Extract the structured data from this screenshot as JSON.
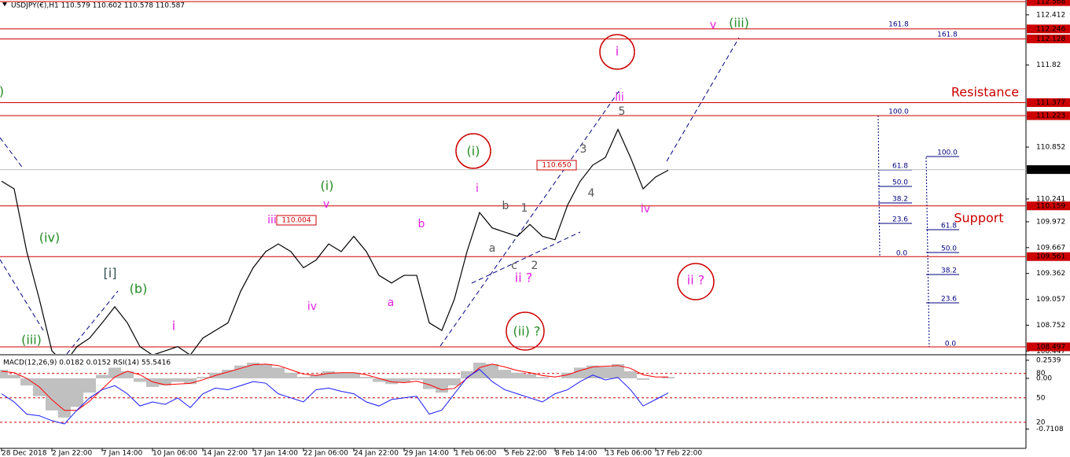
{
  "chart_data": [
    {
      "type": "line",
      "title": "USDJPY(€),H1  110.579 110.602 110.578 110.587",
      "categories": [
        "28 Dec 2018",
        null,
        null,
        null,
        "2 Jan 22:00",
        null,
        null,
        null,
        "7 Jan 14:00",
        null,
        null,
        null,
        "10 Jan 06:00",
        null,
        null,
        null,
        "14 Jan 22:00",
        null,
        null,
        null,
        "17 Jan 14:00",
        null,
        null,
        null,
        "22 Jan 06:00",
        null,
        null,
        null,
        "24 Jan 22:00",
        null,
        null,
        null,
        "29 Jan 14:00",
        null,
        null,
        null,
        "1 Feb 06:00",
        null,
        null,
        null,
        "5 Feb 22:00",
        null,
        null,
        null,
        "8 Feb 14:00",
        null,
        null,
        null,
        "13 Feb 06:00",
        null,
        null,
        null,
        "17 Feb 22:00",
        null
      ],
      "series": [
        {
          "color": "#000000",
          "values": [
            110.45,
            110.36,
            109.62,
            109.06,
            108.45,
            108.3,
            108.5,
            108.6,
            108.78,
            108.97,
            108.78,
            108.5,
            108.4,
            108.45,
            108.5,
            108.4,
            108.6,
            108.69,
            108.78,
            109.15,
            109.43,
            109.62,
            109.71,
            109.62,
            109.43,
            109.52,
            109.71,
            109.62,
            109.8,
            109.62,
            109.34,
            109.25,
            109.34,
            109.34,
            108.78,
            108.69,
            109.06,
            109.62,
            110.08,
            109.9,
            109.85,
            109.8,
            109.94,
            109.8,
            109.76,
            110.17,
            110.45,
            110.64,
            110.73,
            111.06,
            110.73,
            110.36,
            110.5,
            110.58
          ]
        }
      ],
      "ylim": [
        108.413,
        112.587
      ],
      "yticks": [
        112.412,
        111.82,
        110.852,
        110.241,
        109.972,
        109.667,
        109.362,
        109.057,
        108.752,
        108.447
      ],
      "levels": [
        112.568,
        112.246,
        112.128,
        111.377,
        111.223,
        110.159,
        109.561,
        108.497
      ],
      "levels_color": "#cc0000",
      "last": 110.587,
      "annotations": [
        {
          "text": ")",
          "color": "#228b22"
        },
        {
          "text": "(iv)",
          "color": "#228b22"
        },
        {
          "text": "(iii)",
          "color": "#228b22"
        },
        {
          "text": "[i]",
          "color": "#2f4f4f"
        },
        {
          "text": "(b)",
          "color": "#228b22"
        },
        {
          "text": "i",
          "color": "#e020e0"
        },
        {
          "text": "iii",
          "color": "#e020e0"
        },
        {
          "text": "v",
          "color": "#e020e0"
        },
        {
          "text": "(i)",
          "color": "#228b22"
        },
        {
          "text": "iv",
          "color": "#e020e0"
        },
        {
          "text": "b",
          "color": "#e020e0"
        },
        {
          "text": "a",
          "color": "#e020e0"
        },
        {
          "text": "i",
          "color": "#e020e0"
        },
        {
          "text": "b",
          "color": "#555555"
        },
        {
          "text": "1",
          "color": "#555555"
        },
        {
          "text": "a",
          "color": "#555555"
        },
        {
          "text": "c",
          "color": "#555555"
        },
        {
          "text": "2",
          "color": "#555555"
        },
        {
          "text": "ii ?",
          "color": "#e020e0"
        },
        {
          "text": "(i)",
          "color": "#228b22"
        },
        {
          "text": "3",
          "color": "#555555"
        },
        {
          "text": "4",
          "color": "#555555"
        },
        {
          "text": "iii",
          "color": "#e020e0"
        },
        {
          "text": "5",
          "color": "#555555"
        },
        {
          "text": "iv",
          "color": "#e020e0"
        },
        {
          "text": "i",
          "color": "#e020e0"
        },
        {
          "text": "v",
          "color": "#e020e0"
        },
        {
          "text": "(iii)",
          "color": "#228b22"
        },
        {
          "text": "ii ?",
          "color": "#e020e0"
        },
        {
          "text": "(ii) ?",
          "color": "#228b22"
        },
        {
          "text": "Resistance",
          "color": "#cc0000"
        },
        {
          "text": "Support",
          "color": "#cc0000"
        },
        {
          "text": "161.8",
          "color": "#000080"
        },
        {
          "text": "161.8",
          "color": "#000080"
        },
        {
          "text": "100.0",
          "color": "#000080"
        },
        {
          "text": "61.8",
          "color": "#000080"
        },
        {
          "text": "50.0",
          "color": "#000080"
        },
        {
          "text": "38.2",
          "color": "#000080"
        },
        {
          "text": "23.6",
          "color": "#000080"
        },
        {
          "text": "0.0",
          "color": "#000080"
        },
        {
          "text": "100.0",
          "color": "#000080"
        },
        {
          "text": "61.8",
          "color": "#000080"
        },
        {
          "text": "50.0",
          "color": "#000080"
        },
        {
          "text": "38.2",
          "color": "#000080"
        },
        {
          "text": "23.6",
          "color": "#000080"
        },
        {
          "text": "0.0",
          "color": "#000080"
        },
        {
          "text": "110.650",
          "color": "#cc0000"
        },
        {
          "text": "110.004",
          "color": "#cc0000"
        }
      ]
    },
    {
      "type": "line",
      "title": "MACD(12,26,9) 0.0182 0.0152 RSI(14) 55.5416",
      "ylim": [
        -0.982,
        0.309
      ],
      "yticks": [
        0.2539,
        {
          "value": 0,
          "label": "0.00"
        },
        -0.7108
      ],
      "y2lim": [
        -12,
        101
      ],
      "y2ticks": [
        80,
        50,
        20
      ],
      "series": [
        {
          "kind": "bar",
          "color": "#c0c0c0",
          "values": [
            0.12,
            0.05,
            -0.1,
            -0.25,
            -0.45,
            -0.55,
            -0.4,
            -0.2,
            0.05,
            0.15,
            0.1,
            -0.05,
            -0.12,
            -0.1,
            -0.05,
            -0.08,
            0.02,
            0.08,
            0.12,
            0.18,
            0.22,
            0.2,
            0.15,
            0.08,
            0.02,
            0.05,
            0.1,
            0.08,
            0.08,
            0.02,
            -0.05,
            -0.08,
            -0.06,
            -0.02,
            -0.15,
            -0.2,
            -0.1,
            0.1,
            0.22,
            0.2,
            0.12,
            0.08,
            0.06,
            0.02,
            0,
            0.08,
            0.15,
            0.18,
            0.16,
            0.2,
            0.1,
            -0.02,
            0,
            0.02
          ]
        },
        {
          "color": "#ff0000",
          "values": [
            0.1,
            0.08,
            0,
            -0.12,
            -0.3,
            -0.45,
            -0.45,
            -0.32,
            -0.15,
            0.02,
            0.1,
            0.05,
            -0.05,
            -0.09,
            -0.08,
            -0.07,
            -0.02,
            0.04,
            0.09,
            0.14,
            0.19,
            0.2,
            0.18,
            0.12,
            0.06,
            0.04,
            0.07,
            0.08,
            0.08,
            0.05,
            0,
            -0.05,
            -0.06,
            -0.04,
            -0.09,
            -0.16,
            -0.14,
            0,
            0.15,
            0.2,
            0.16,
            0.11,
            0.08,
            0.04,
            0.02,
            0.05,
            0.11,
            0.16,
            0.17,
            0.18,
            0.14,
            0.05,
            0.02,
            0.02
          ]
        },
        {
          "axis": "y2",
          "color": "#1a1aff",
          "values": [
            55,
            45,
            30,
            28,
            22,
            18,
            35,
            50,
            60,
            65,
            55,
            40,
            45,
            42,
            50,
            38,
            55,
            62,
            60,
            65,
            70,
            68,
            55,
            50,
            45,
            60,
            62,
            58,
            55,
            45,
            40,
            48,
            50,
            52,
            30,
            35,
            55,
            75,
            85,
            70,
            60,
            55,
            50,
            45,
            55,
            60,
            70,
            78,
            72,
            75,
            60,
            40,
            48,
            56
          ]
        }
      ]
    }
  ]
}
